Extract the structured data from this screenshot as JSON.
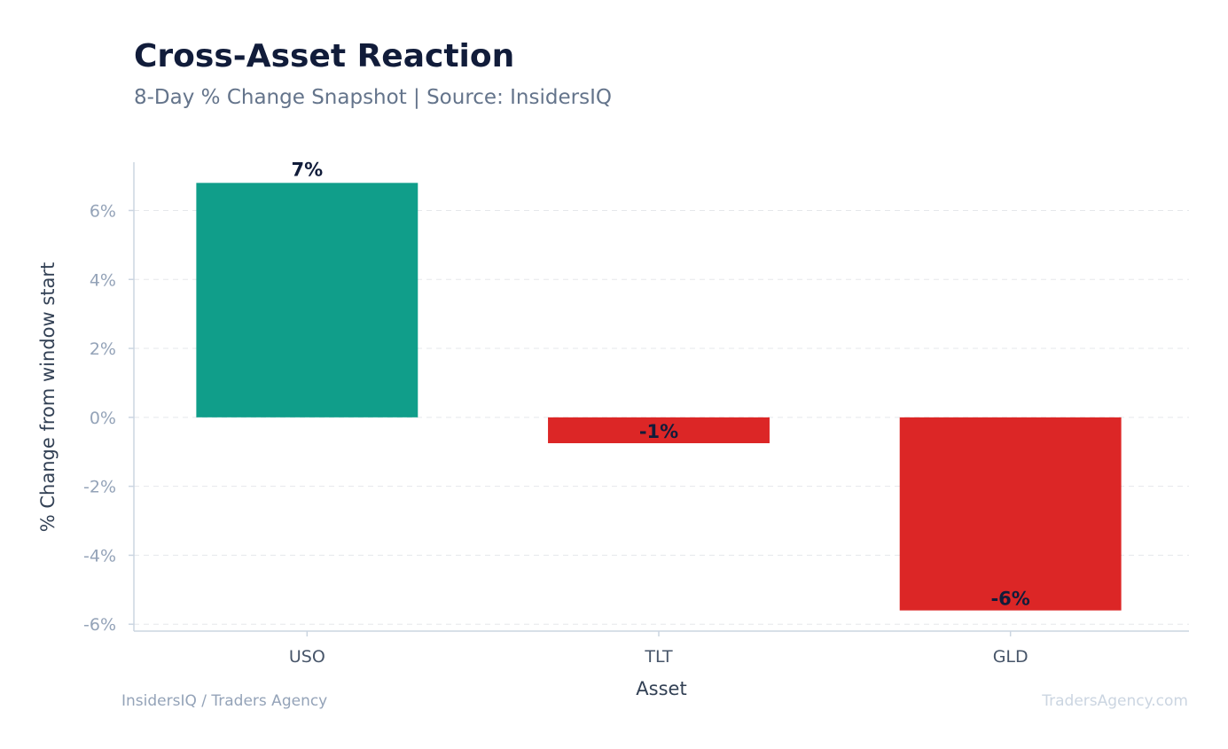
{
  "chart_data": {
    "type": "bar",
    "title": "Cross-Asset Reaction",
    "subtitle": "8-Day % Change Snapshot | Source: InsidersIQ",
    "xlabel": "Asset",
    "ylabel": "% Change from window start",
    "categories": [
      "USO",
      "TLT",
      "GLD"
    ],
    "values": [
      6.8,
      -0.75,
      -5.6
    ],
    "value_labels": [
      "7%",
      "-1%",
      "-6%"
    ],
    "ylim": [
      -6.2,
      7.4
    ],
    "yticks": [
      6,
      4,
      2,
      0,
      -2,
      -4,
      -6
    ],
    "ytick_labels": [
      "6%",
      "4%",
      "2%",
      "0%",
      "-2%",
      "-4%",
      "-6%"
    ],
    "grid": true,
    "legend": "none",
    "colors": {
      "positive": "#109e8a",
      "negative": "#dc2626"
    }
  },
  "footer": {
    "left": "InsidersIQ / Traders Agency",
    "right": "TradersAgency.com"
  }
}
